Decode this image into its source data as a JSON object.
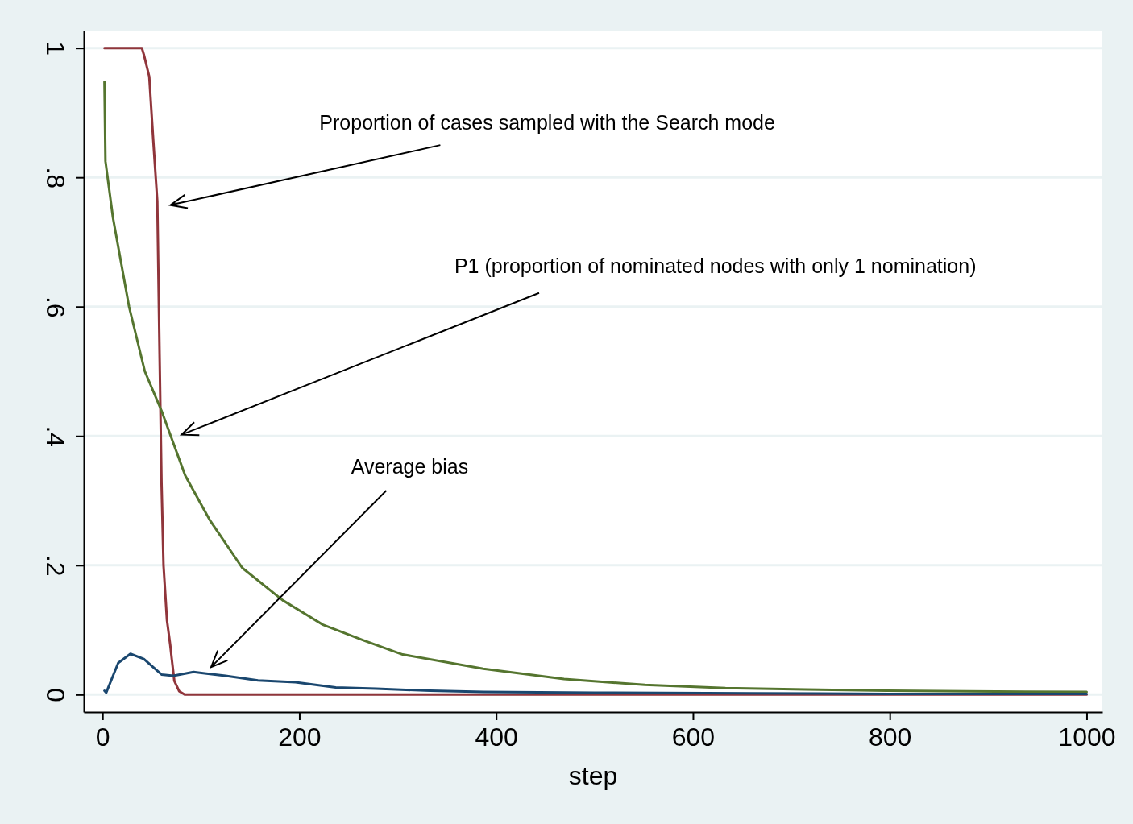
{
  "chart_data": {
    "type": "line",
    "xlabel": "step",
    "xlim": [
      -19,
      1016
    ],
    "ylim": [
      -0.027,
      1.027
    ],
    "xticks": [
      0,
      200,
      400,
      600,
      800,
      1000
    ],
    "yticks": [
      {
        "value": 0,
        "label": "0"
      },
      {
        "value": 0.2,
        "label": ".2"
      },
      {
        "value": 0.4,
        "label": ".4"
      },
      {
        "value": 0.6,
        "label": ".6"
      },
      {
        "value": 0.8,
        "label": ".8"
      },
      {
        "value": 1,
        "label": "1"
      }
    ],
    "grid": "y",
    "marker": "none",
    "line_style": "solid",
    "series": [
      {
        "color": "#90353b",
        "x": [
          2,
          20,
          40,
          42,
          47.5,
          51.6,
          55.7,
          58,
          60,
          62,
          65.5,
          68.8,
          70.4,
          73,
          78,
          83.5,
          1000
        ],
        "values": [
          1,
          1,
          1,
          0.99,
          0.956,
          0.857,
          0.763,
          0.526,
          0.327,
          0.2,
          0.115,
          0.077,
          0.055,
          0.021,
          0.005,
          0,
          0
        ]
      },
      {
        "color": "#55752f",
        "x": [
          2,
          3,
          10.6,
          27,
          43,
          60,
          84,
          109,
          142,
          183,
          224,
          265,
          305,
          387,
          469,
          551,
          633,
          715,
          797,
          878,
          1000
        ],
        "values": [
          0.948,
          0.825,
          0.738,
          0.6,
          0.5,
          0.439,
          0.339,
          0.27,
          0.196,
          0.146,
          0.108,
          0.084,
          0.062,
          0.04,
          0.024,
          0.015,
          0.01,
          0.008,
          0.006,
          0.005,
          0.004
        ]
      },
      {
        "color": "#1a476f",
        "x": [
          2,
          3.8,
          16,
          28.4,
          42,
          60,
          72,
          92.5,
          125,
          158,
          196,
          237,
          278,
          333,
          387,
          500,
          660,
          800,
          1000
        ],
        "values": [
          0.006,
          0.003,
          0.049,
          0.063,
          0.055,
          0.031,
          0.029,
          0.035,
          0.029,
          0.022,
          0.019,
          0.011,
          0.009,
          0.006,
          0.004,
          0.003,
          0.002,
          0.001,
          0.001
        ]
      }
    ],
    "annotations": [
      "Proportion of cases sampled with the Search mode",
      "P1 (proportion of nominated nodes with only 1 nomination)",
      "Average bias"
    ]
  }
}
